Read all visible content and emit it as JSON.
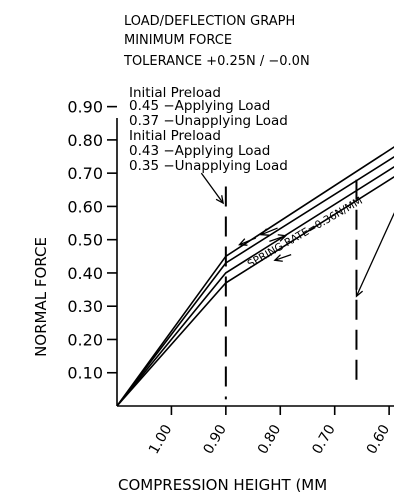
{
  "header": {
    "lines": [
      "LOAD/DEFLECTION GRAPH",
      "MINIMUM FORCE",
      "TOLERANCE +0.25N / −0.0N"
    ]
  },
  "annotations": {
    "block1": [
      "Initial  Preload",
      "0.45  −Applying Load",
      "0.37  −Unapplying  Load"
    ],
    "block2": [
      "Initial  Preload",
      "0.43  −Applying Load",
      "0.35  −Unapplying  Load"
    ],
    "spring_rate": "SPRING RATE=0.36N/MM"
  },
  "chart_data": {
    "type": "line",
    "title": "LOAD/DEFLECTION GRAPH",
    "xlabel": "COMPRESSION HEIGHT (MM",
    "ylabel": "NORMAL FORCE",
    "x_ticks": [
      "1.00",
      "0.90",
      "0.80",
      "0.70",
      "0.60"
    ],
    "x_values": [
      1.0,
      0.9,
      0.8,
      0.7,
      0.6
    ],
    "xlim": [
      1.1,
      0.58
    ],
    "y_ticks": [
      "0.10",
      "0.20",
      "0.30",
      "0.40",
      "0.50",
      "0.60",
      "0.70",
      "0.80",
      "0.90"
    ],
    "ylim": [
      0,
      0.95
    ],
    "series": [
      {
        "x": [
          1.1,
          0.9,
          0.58
        ],
        "y": [
          0,
          0.45,
          0.79
        ]
      },
      {
        "x": [
          1.1,
          0.9,
          0.58
        ],
        "y": [
          0,
          0.43,
          0.76
        ]
      },
      {
        "x": [
          1.1,
          0.9,
          0.58
        ],
        "y": [
          0,
          0.4,
          0.73
        ]
      },
      {
        "x": [
          1.1,
          0.9,
          0.58
        ],
        "y": [
          0,
          0.37,
          0.7
        ]
      }
    ],
    "dashed_verticals": [
      {
        "x": 0.9,
        "y_from": 0.02,
        "y_top": 0.66
      },
      {
        "x": 0.66,
        "y_from": 0.06,
        "y_top": 0.68
      }
    ],
    "arrows": [
      {
        "from": [
          0.845,
          0.505
        ],
        "to": [
          0.875,
          0.485
        ]
      },
      {
        "from": [
          0.805,
          0.535
        ],
        "to": [
          0.835,
          0.515
        ]
      },
      {
        "from": [
          0.82,
          0.495
        ],
        "to": [
          0.79,
          0.512
        ]
      },
      {
        "from": [
          0.78,
          0.455
        ],
        "to": [
          0.81,
          0.438
        ]
      }
    ],
    "leaders": [
      {
        "from": [
          0.945,
          0.7
        ],
        "to": [
          0.905,
          0.61
        ]
      },
      {
        "from": [
          0.585,
          0.6
        ],
        "to": [
          0.66,
          0.33
        ]
      }
    ],
    "grid": false,
    "legend": "none"
  }
}
